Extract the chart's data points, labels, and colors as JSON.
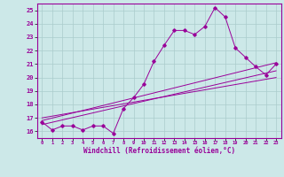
{
  "xlabel": "Windchill (Refroidissement éolien,°C)",
  "background_color": "#cce8e8",
  "line_color": "#990099",
  "grid_color": "#aacccc",
  "xlim": [
    -0.5,
    23.5
  ],
  "ylim": [
    15.5,
    25.5
  ],
  "yticks": [
    16,
    17,
    18,
    19,
    20,
    21,
    22,
    23,
    24,
    25
  ],
  "xticks": [
    0,
    1,
    2,
    3,
    4,
    5,
    6,
    7,
    8,
    9,
    10,
    11,
    12,
    13,
    14,
    15,
    16,
    17,
    18,
    19,
    20,
    21,
    22,
    23
  ],
  "main_x": [
    0,
    1,
    2,
    3,
    4,
    5,
    6,
    7,
    8,
    9,
    10,
    11,
    12,
    13,
    14,
    15,
    16,
    17,
    18,
    19,
    20,
    21,
    22,
    23
  ],
  "main_y": [
    16.7,
    16.1,
    16.4,
    16.4,
    16.1,
    16.4,
    16.4,
    15.85,
    17.7,
    18.5,
    19.5,
    21.2,
    22.4,
    23.5,
    23.5,
    23.2,
    23.8,
    25.2,
    24.5,
    22.2,
    21.5,
    20.8,
    20.2,
    21.0
  ],
  "line2_x": [
    0,
    23
  ],
  "line2_y": [
    16.5,
    20.5
  ],
  "line3_x": [
    0,
    23
  ],
  "line3_y": [
    16.8,
    21.1
  ],
  "line4_x": [
    0,
    23
  ],
  "line4_y": [
    17.0,
    20.0
  ]
}
